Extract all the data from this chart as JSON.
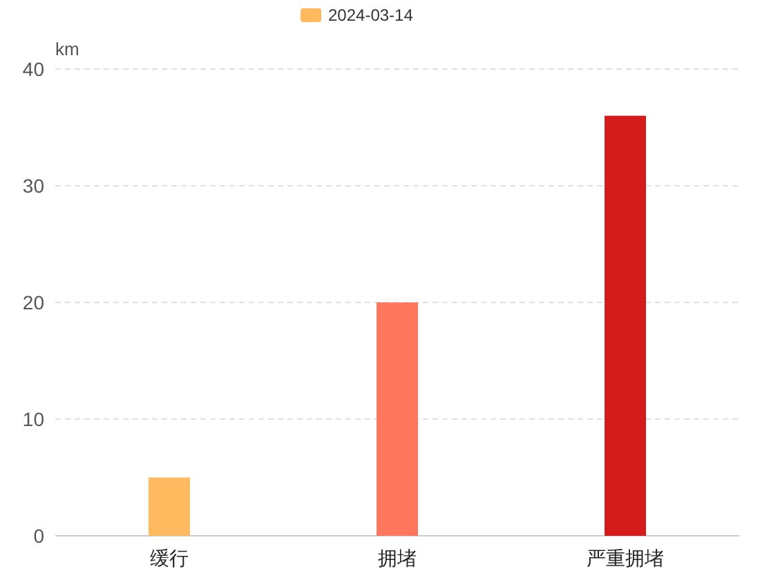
{
  "chart_data": {
    "type": "bar",
    "ylabel": "km",
    "categories": [
      "缓行",
      "拥堵",
      "严重拥堵"
    ],
    "series": [
      {
        "name": "2024-03-14",
        "color": "#ffb95e",
        "colors": [
          "#ffb95e",
          "#ff775c",
          "#d41c1c"
        ],
        "values": [
          5,
          20,
          36
        ]
      }
    ],
    "ylim": [
      0,
      40
    ],
    "yticks": [
      0,
      10,
      20,
      30,
      40
    ],
    "grid": "y",
    "legend": "top"
  }
}
